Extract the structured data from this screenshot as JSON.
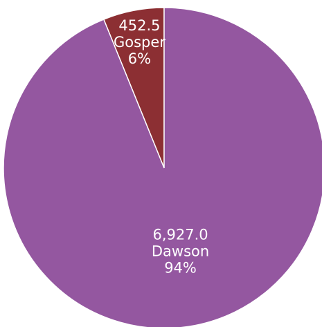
{
  "chart_data": {
    "type": "pie",
    "title": "",
    "slices": [
      {
        "name": "Gosper",
        "value": 452.5,
        "value_label": "452.5",
        "percent_label": "6%",
        "color": "#8C2F33"
      },
      {
        "name": "Dawson",
        "value": 6927.0,
        "value_label": "6,927.0",
        "percent_label": "94%",
        "color": "#9457A0"
      }
    ],
    "start_angle": "12 o'clock",
    "direction": "counter-clockwise",
    "slice_border_color": "#ffffff",
    "data_labels": "value, category, percentage"
  }
}
